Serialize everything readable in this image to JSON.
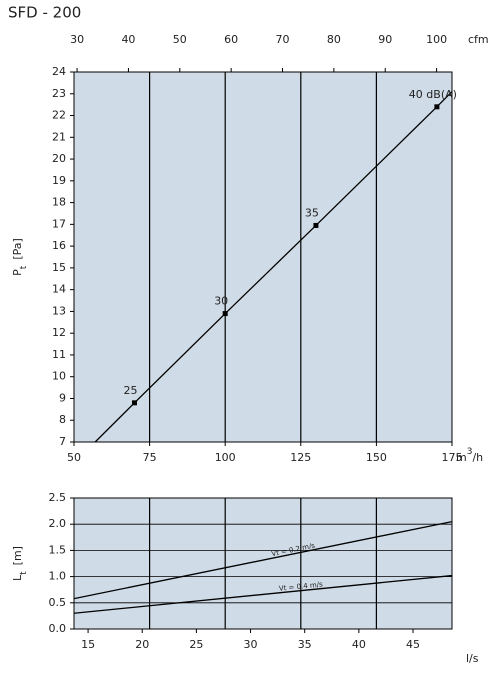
{
  "chart_data": [
    {
      "type": "line",
      "title": "SFD  - 200",
      "xlim": [
        50,
        175
      ],
      "xticks": [
        50,
        75,
        100,
        125,
        150,
        175
      ],
      "xlabel": {
        "main": "m",
        "sup": "3",
        "unit": "/h"
      },
      "x2lim": [
        29.4,
        103
      ],
      "x2ticks": [
        30,
        40,
        50,
        60,
        70,
        80,
        90,
        100
      ],
      "x2label": "cfm",
      "ylim": [
        7,
        24
      ],
      "yticks": [
        7,
        8,
        9,
        10,
        11,
        12,
        13,
        14,
        15,
        16,
        17,
        18,
        19,
        20,
        21,
        22,
        23,
        24
      ],
      "ylabel": {
        "main": "P",
        "sub": "t",
        "unit": "[Pa]"
      },
      "background": "#cfdbe6",
      "grid": true,
      "series": [
        {
          "color": "#000000",
          "x": [
            57,
            70,
            100,
            130,
            170,
            175
          ],
          "values": [
            7,
            8.8,
            12.9,
            16.95,
            22.4,
            23.1
          ]
        }
      ],
      "points": {
        "color": "#000000",
        "x": [
          70,
          100,
          130,
          170
        ],
        "values": [
          8.8,
          12.9,
          16.95,
          22.4
        ],
        "labels": [
          "25",
          "30",
          "35",
          "40 dB(A)"
        ]
      }
    },
    {
      "type": "line",
      "xlim": [
        13.7,
        48.6
      ],
      "xticks": [
        15,
        20,
        25,
        30,
        35,
        40,
        45
      ],
      "xlabel": "l/s",
      "ylim": [
        0,
        2.5
      ],
      "yticks": [
        {
          "value": 0,
          "label": "0.0"
        },
        0.5,
        {
          "value": 1,
          "label": "1.0"
        },
        1.5,
        {
          "value": 2,
          "label": "2.0"
        },
        2.5
      ],
      "ylabel": {
        "main": "L",
        "sub": "t",
        "unit": "[m]"
      },
      "background": "#cfdbe6",
      "grid": true,
      "series": [
        {
          "label": "Vt = 0.2 m/s",
          "color": "#000000",
          "x": [
            13.7,
            48.6
          ],
          "values": [
            0.58,
            2.05
          ]
        },
        {
          "label": "Vt = 0.4 m/s",
          "color": "#000000",
          "x": [
            13.7,
            48.6
          ],
          "values": [
            0.3,
            1.02
          ]
        }
      ]
    }
  ]
}
